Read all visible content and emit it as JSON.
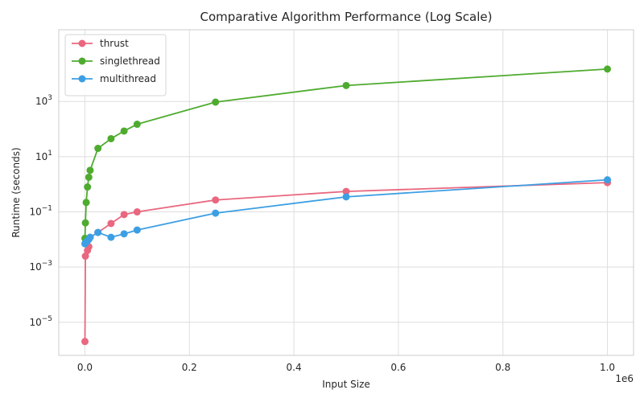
{
  "chart_data": {
    "type": "line",
    "title": "Comparative Algorithm Performance (Log Scale)",
    "xlabel": "Input Size",
    "ylabel": "Runtime (seconds)",
    "x_offset_label": "1e6",
    "xlim": [
      -50000,
      1050000
    ],
    "ylim_log": [
      -6.2,
      5.6
    ],
    "yscale": "log",
    "grid": true,
    "legend_position": "top-left",
    "x_ticks": [
      {
        "value": 0,
        "label": "0.0"
      },
      {
        "value": 200000,
        "label": "0.2"
      },
      {
        "value": 400000,
        "label": "0.4"
      },
      {
        "value": 600000,
        "label": "0.6"
      },
      {
        "value": 800000,
        "label": "0.8"
      },
      {
        "value": 1000000,
        "label": "1.0"
      }
    ],
    "y_ticks": [
      {
        "value": 1e-05,
        "base": "10",
        "exp": "−5"
      },
      {
        "value": 0.001,
        "base": "10",
        "exp": "−3"
      },
      {
        "value": 0.1,
        "base": "10",
        "exp": "−1"
      },
      {
        "value": 10,
        "base": "10",
        "exp": "1"
      },
      {
        "value": 1000,
        "base": "10",
        "exp": "3"
      }
    ],
    "series": [
      {
        "name": "thrust",
        "color": "#e9677f",
        "x": [
          100,
          1000,
          5000,
          7500,
          10000,
          25000,
          50000,
          75000,
          100000,
          250000,
          500000,
          1000000
        ],
        "y": [
          2e-06,
          0.0025,
          0.004,
          0.0055,
          0.012,
          0.018,
          0.038,
          0.08,
          0.1,
          0.27,
          0.55,
          1.15
        ]
      },
      {
        "name": "singlethread",
        "color": "#4eab2f",
        "x": [
          100,
          1000,
          2500,
          5000,
          7500,
          10000,
          25000,
          50000,
          75000,
          100000,
          250000,
          500000,
          1000000
        ],
        "y": [
          0.011,
          0.04,
          0.22,
          0.8,
          1.8,
          3.2,
          20,
          45,
          85,
          150,
          950,
          3800,
          15000
        ]
      },
      {
        "name": "multithread",
        "color": "#3d9fe3",
        "x": [
          100,
          1000,
          2500,
          5000,
          7500,
          10000,
          25000,
          50000,
          75000,
          100000,
          250000,
          500000,
          1000000
        ],
        "y": [
          0.007,
          0.0075,
          0.008,
          0.009,
          0.01,
          0.012,
          0.018,
          0.012,
          0.016,
          0.022,
          0.09,
          0.35,
          1.45
        ]
      }
    ]
  }
}
